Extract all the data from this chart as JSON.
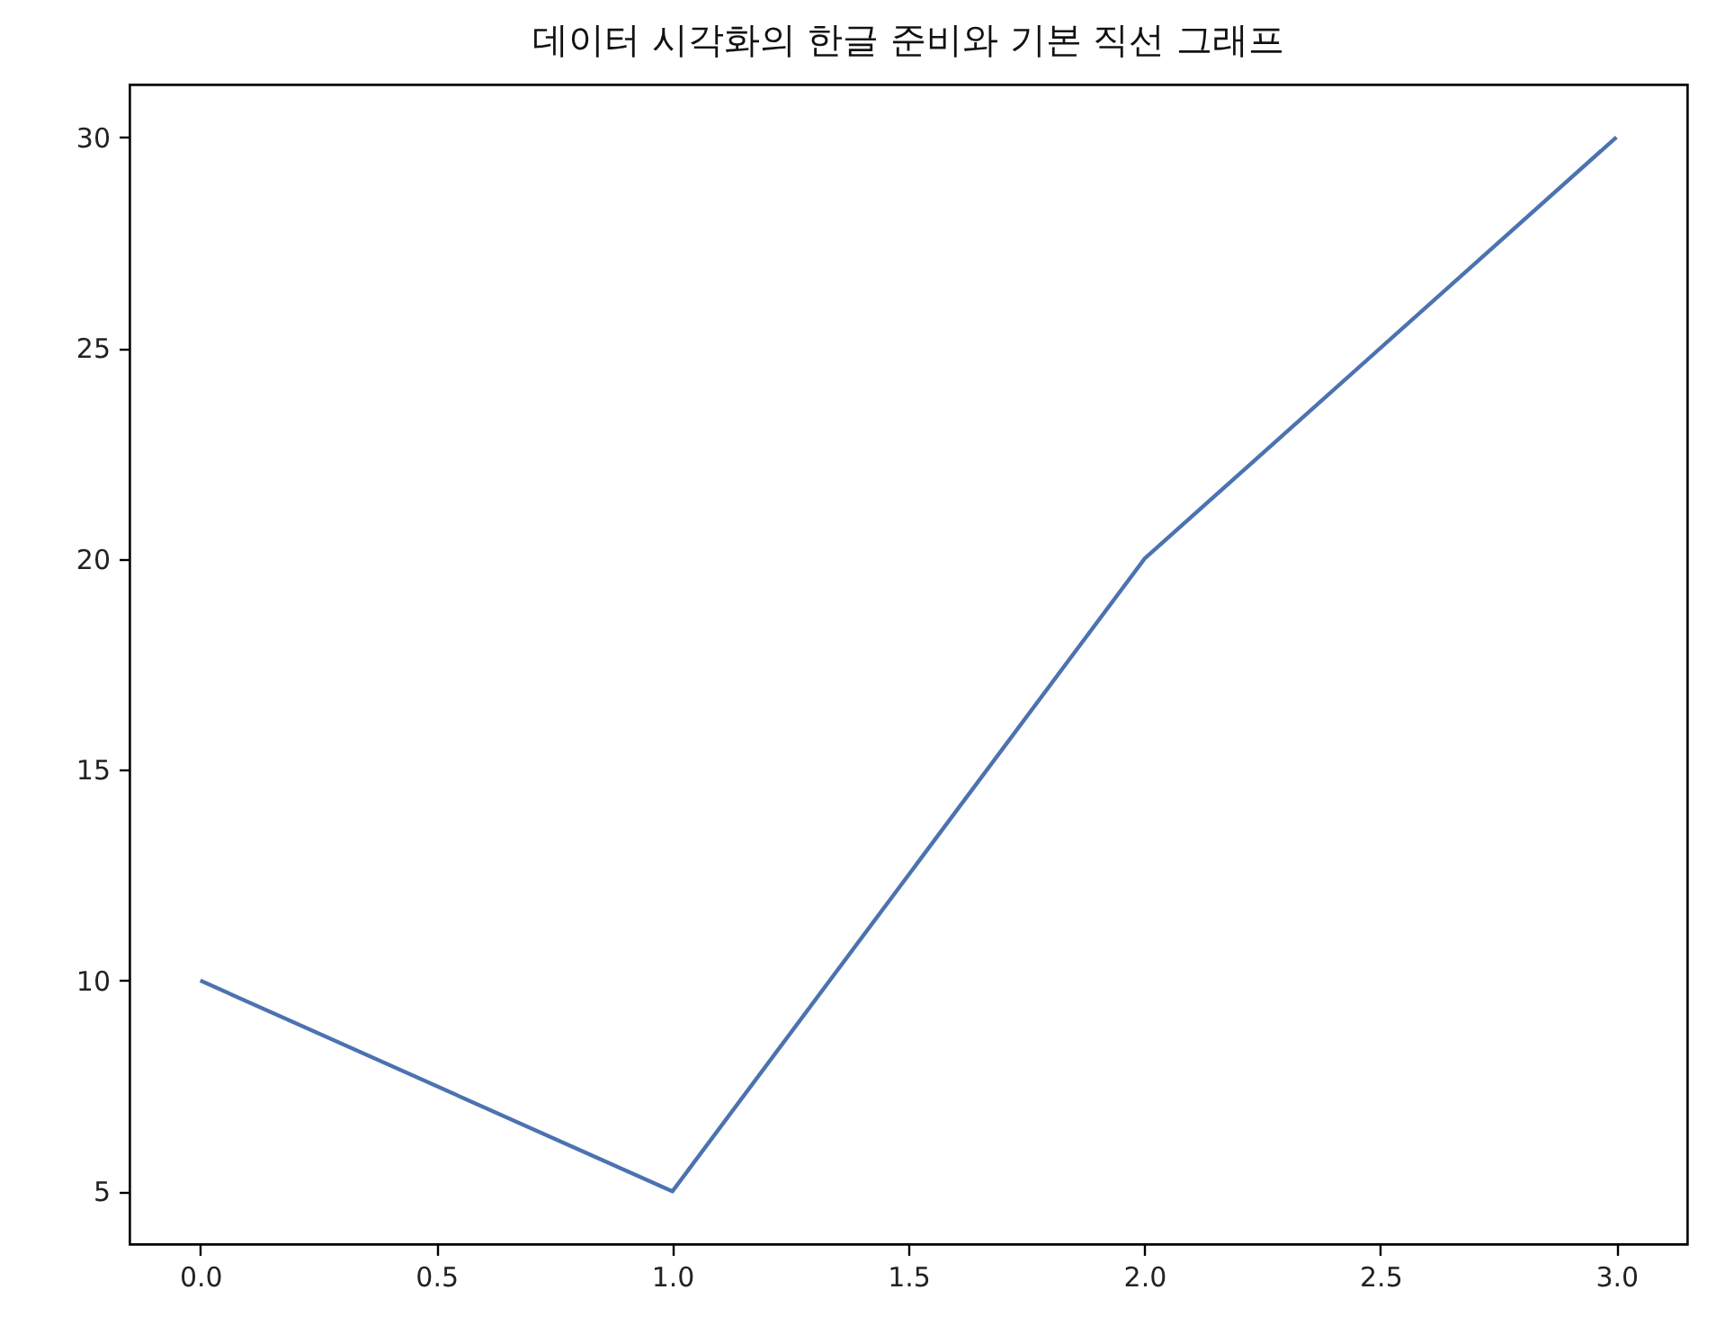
{
  "chart_data": {
    "type": "line",
    "title": "데이터 시각화의 한글 준비와 기본 직선 그래프",
    "x": [
      0,
      1,
      2,
      3
    ],
    "values": [
      10,
      5,
      20,
      30
    ],
    "color": "#4c72b0",
    "xlim": [
      -0.15,
      3.15
    ],
    "ylim": [
      3.75,
      31.25
    ],
    "xticks": [
      {
        "value": 0,
        "label": "0.0"
      },
      {
        "value": 0.5,
        "label": "0.5"
      },
      {
        "value": 1,
        "label": "1.0"
      },
      {
        "value": 1.5,
        "label": "1.5"
      },
      {
        "value": 2,
        "label": "2.0"
      },
      {
        "value": 2.5,
        "label": "2.5"
      },
      {
        "value": 3,
        "label": "3.0"
      }
    ],
    "yticks": [
      5,
      10,
      15,
      20,
      25,
      30
    ]
  }
}
